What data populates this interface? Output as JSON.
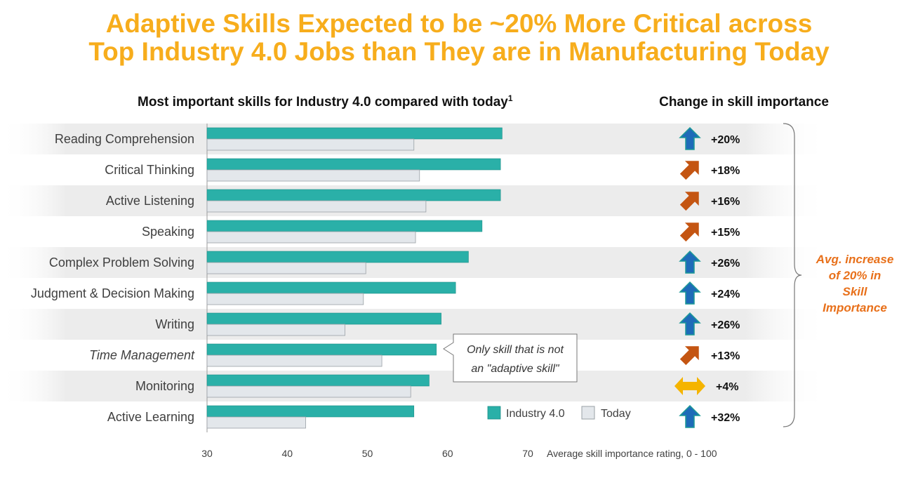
{
  "title": {
    "line1": "Adaptive Skills Expected to be ~20% More Critical across",
    "line2": "Top Industry 4.0 Jobs than They are in Manufacturing Today"
  },
  "chart_data": {
    "type": "bar",
    "title": "Most important skills for Industry 4.0 compared with today",
    "title_footnote": "1",
    "xlabel": "Average skill importance rating, 0 - 100",
    "xlim": [
      30,
      70
    ],
    "xticks": [
      30,
      40,
      50,
      60,
      70
    ],
    "categories": [
      "Reading Comprehension",
      "Critical Thinking",
      "Active Listening",
      "Speaking",
      "Complex Problem Solving",
      "Judgment & Decision Making",
      "Writing",
      "Time Management",
      "Monitoring",
      "Active Learning"
    ],
    "italic_categories": [
      "Time Management"
    ],
    "series": [
      {
        "name": "Industry 4.0",
        "color": "#2ab0a8",
        "values": [
          66.8,
          66.6,
          66.6,
          64.3,
          62.6,
          61.0,
          59.2,
          58.6,
          57.7,
          55.8
        ]
      },
      {
        "name": "Today",
        "color": "#e3e7eb",
        "values": [
          55.8,
          56.5,
          57.3,
          56.0,
          49.8,
          49.5,
          47.2,
          51.8,
          55.4,
          42.3
        ]
      }
    ],
    "legend_position": "bottom-right",
    "callout": {
      "line1": "Only skill that is not",
      "line2": "an \"adaptive skill\""
    },
    "change": {
      "title": "Change in skill importance",
      "values": [
        "+20%",
        "+18%",
        "+16%",
        "+15%",
        "+26%",
        "+24%",
        "+26%",
        "+13%",
        "+4%",
        "+32%"
      ],
      "icons": [
        "up-arrow-icon",
        "diagonal-arrow-icon",
        "diagonal-arrow-icon",
        "diagonal-arrow-icon",
        "up-arrow-icon",
        "up-arrow-icon",
        "up-arrow-icon",
        "diagonal-arrow-icon",
        "horizontal-double-arrow-icon",
        "up-arrow-icon"
      ],
      "icon_colors": {
        "up": "#1e6bb8",
        "up_stroke": "#1c9a96",
        "diagonal": "#c45512",
        "horizontal": "#f5b400"
      }
    },
    "summary_note": [
      "Avg. increase",
      "of 20% in",
      "Skill",
      "Importance"
    ],
    "stripe_color": "#ececec",
    "note_color": "#e8701a"
  }
}
